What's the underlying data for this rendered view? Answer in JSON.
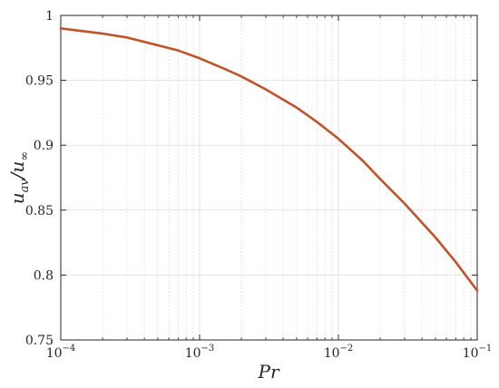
{
  "chart_data": {
    "type": "line",
    "xlabel": "Pr",
    "ylabel": "u_av / u_∞",
    "xscale": "log",
    "xlim": [
      0.0001,
      0.1
    ],
    "ylim": [
      0.75,
      1.0
    ],
    "grid": true,
    "x_ticks": [
      {
        "value": 0.0001,
        "base": "10",
        "exp": "−4"
      },
      {
        "value": 0.001,
        "base": "10",
        "exp": "−3"
      },
      {
        "value": 0.01,
        "base": "10",
        "exp": "−2"
      },
      {
        "value": 0.1,
        "base": "10",
        "exp": "−1"
      }
    ],
    "y_ticks": [
      {
        "value": 0.75,
        "label": "0.75"
      },
      {
        "value": 0.8,
        "label": "0.8"
      },
      {
        "value": 0.85,
        "label": "0.85"
      },
      {
        "value": 0.9,
        "label": "0.9"
      },
      {
        "value": 0.95,
        "label": "0.95"
      },
      {
        "value": 1.0,
        "label": "1"
      }
    ],
    "series": [
      {
        "color": "#C0532A",
        "x": [
          0.0001,
          0.0002,
          0.0003,
          0.0005,
          0.0007,
          0.001,
          0.0015,
          0.002,
          0.003,
          0.005,
          0.007,
          0.01,
          0.015,
          0.02,
          0.03,
          0.05,
          0.07,
          0.1
        ],
        "y": [
          0.99,
          0.986,
          0.983,
          0.977,
          0.973,
          0.967,
          0.959,
          0.953,
          0.943,
          0.929,
          0.918,
          0.905,
          0.888,
          0.874,
          0.855,
          0.829,
          0.81,
          0.788
        ]
      }
    ]
  }
}
